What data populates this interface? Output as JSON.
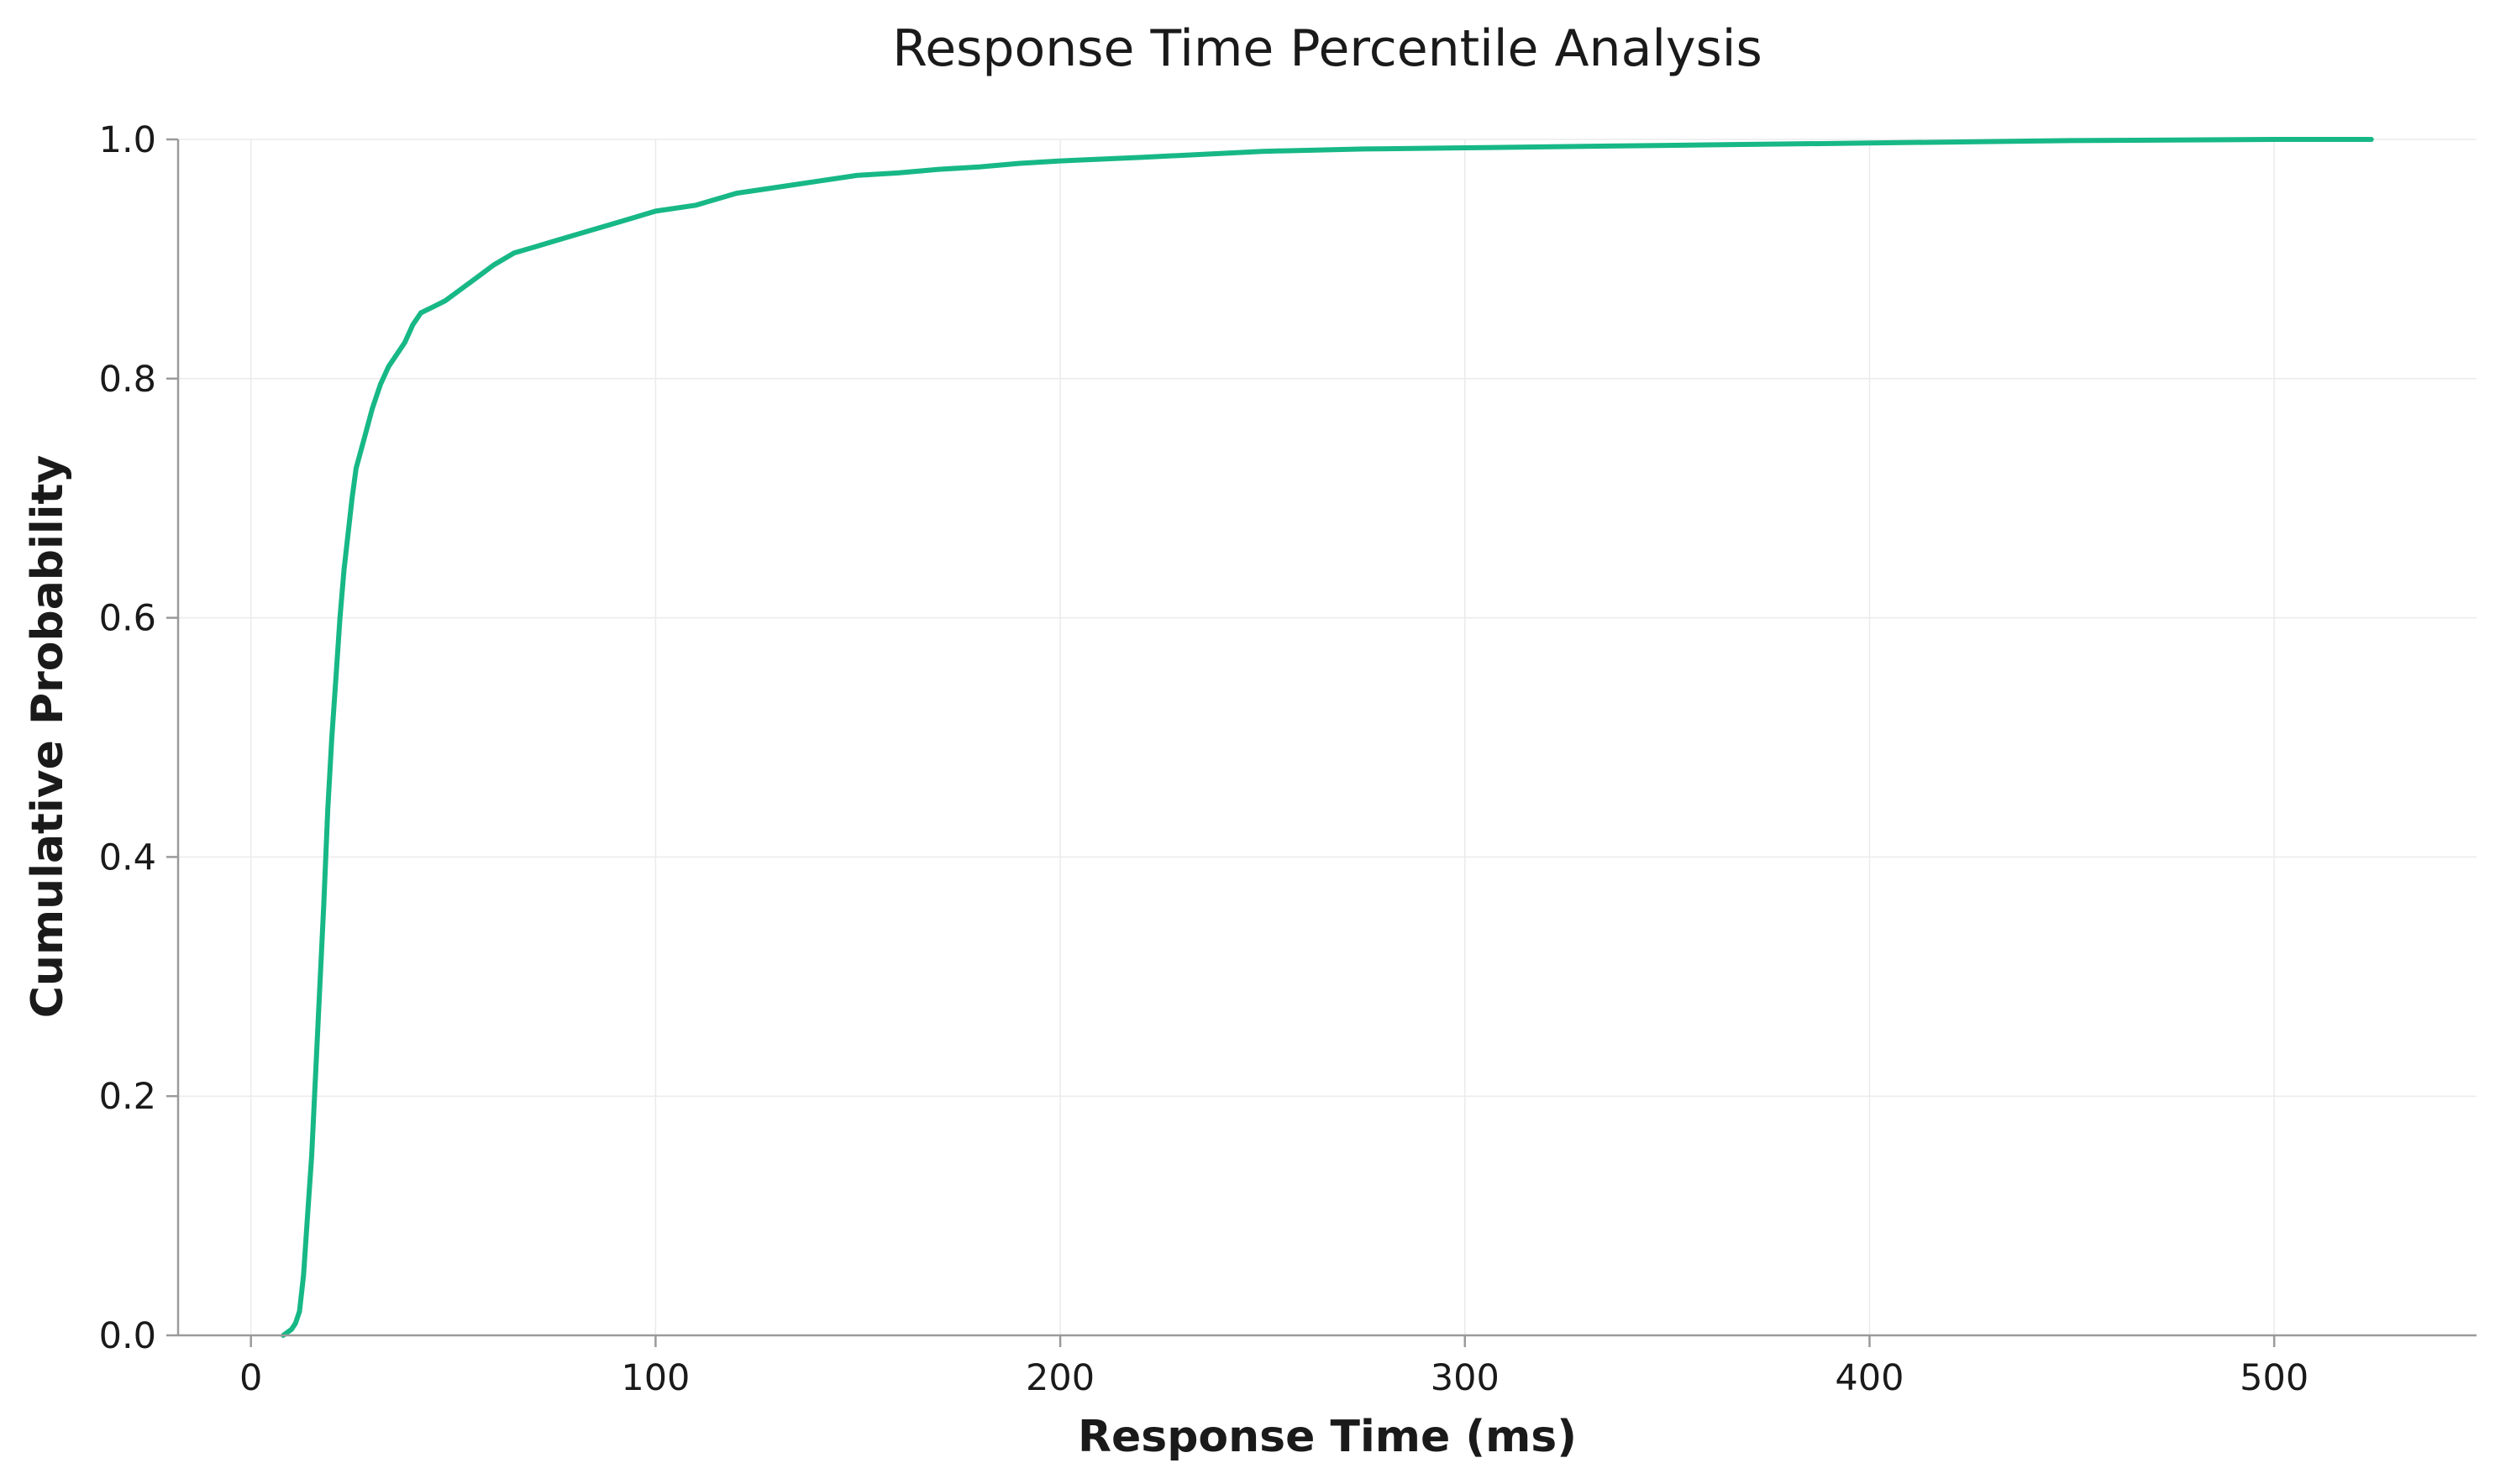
{
  "chart_data": {
    "type": "line",
    "title": "Response Time Percentile Analysis",
    "xlabel": "Response Time (ms)",
    "ylabel": "Cumulative Probability",
    "xlim": [
      -18,
      550
    ],
    "ylim": [
      0,
      1.0
    ],
    "xticks": [
      0,
      100,
      200,
      300,
      400,
      500
    ],
    "yticks": [
      0.0,
      0.2,
      0.4,
      0.6,
      0.8,
      1.0
    ],
    "xtick_labels": [
      "0",
      "100",
      "200",
      "300",
      "400",
      "500"
    ],
    "ytick_labels": [
      "0.0",
      "0.2",
      "0.4",
      "0.6",
      "0.8",
      "1.0"
    ],
    "grid": true,
    "series": [
      {
        "color": "#17b886",
        "x": [
          8,
          10,
          11,
          12,
          13,
          14,
          15,
          16,
          17,
          18,
          19,
          20,
          21,
          22,
          23,
          24,
          25,
          26,
          28,
          30,
          32,
          34,
          36,
          38,
          40,
          42,
          45,
          48,
          52,
          56,
          60,
          65,
          70,
          75,
          80,
          90,
          95,
          100,
          110,
          120,
          130,
          140,
          150,
          160,
          170,
          180,
          190,
          200,
          220,
          250,
          275,
          300,
          350,
          400,
          450,
          500,
          524
        ],
        "y": [
          0.0,
          0.005,
          0.01,
          0.02,
          0.05,
          0.1,
          0.15,
          0.22,
          0.29,
          0.36,
          0.44,
          0.5,
          0.55,
          0.6,
          0.64,
          0.67,
          0.7,
          0.725,
          0.75,
          0.775,
          0.795,
          0.81,
          0.82,
          0.83,
          0.845,
          0.855,
          0.86,
          0.865,
          0.875,
          0.885,
          0.895,
          0.905,
          0.91,
          0.915,
          0.92,
          0.93,
          0.935,
          0.94,
          0.945,
          0.955,
          0.96,
          0.965,
          0.97,
          0.972,
          0.975,
          0.977,
          0.98,
          0.982,
          0.985,
          0.99,
          0.992,
          0.993,
          0.995,
          0.997,
          0.999,
          1.0,
          1.0
        ]
      }
    ]
  }
}
